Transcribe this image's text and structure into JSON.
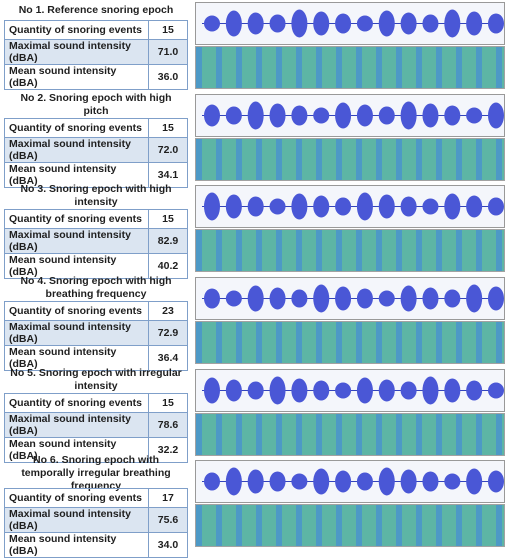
{
  "panels": [
    {
      "title": "No 1. Reference snoring epoch",
      "rows": [
        [
          "Quantity of snoring events",
          "15"
        ],
        [
          "Maximal sound intensity (dBA)",
          "71.0"
        ],
        [
          "Mean sound intensity (dBA)",
          "36.0"
        ]
      ]
    },
    {
      "title": "No 2. Snoring epoch with high pitch",
      "rows": [
        [
          "Quantity of snoring events",
          "15"
        ],
        [
          "Maximal sound intensity (dBA)",
          "72.0"
        ],
        [
          "Mean sound intensity (dBA)",
          "34.1"
        ]
      ]
    },
    {
      "title": "No 3. Snoring epoch with high intensity",
      "rows": [
        [
          "Quantity of snoring events",
          "15"
        ],
        [
          "Maximal sound intensity (dBA)",
          "82.9"
        ],
        [
          "Mean sound intensity (dBA)",
          "40.2"
        ]
      ]
    },
    {
      "title": "No 4. Snoring epoch with high breathing frequency",
      "rows": [
        [
          "Quantity of snoring events",
          "23"
        ],
        [
          "Maximal sound intensity (dBA)",
          "72.9"
        ],
        [
          "Mean sound intensity (dBA)",
          "36.4"
        ]
      ]
    },
    {
      "title": "No 5. Snoring epoch with irregular intensity",
      "rows": [
        [
          "Quantity of snoring events",
          "15"
        ],
        [
          "Maximal sound intensity (dBA)",
          "78.6"
        ],
        [
          "Mean sound intensity (dBA)",
          "32.2"
        ]
      ]
    },
    {
      "title": "No 6. Snoring epoch with temporally irregular breathing frequency",
      "rows": [
        [
          "Quantity of snoring events",
          "17"
        ],
        [
          "Maximal sound intensity (dBA)",
          "75.6"
        ],
        [
          "Mean sound intensity (dBA)",
          "34.0"
        ]
      ]
    }
  ]
}
